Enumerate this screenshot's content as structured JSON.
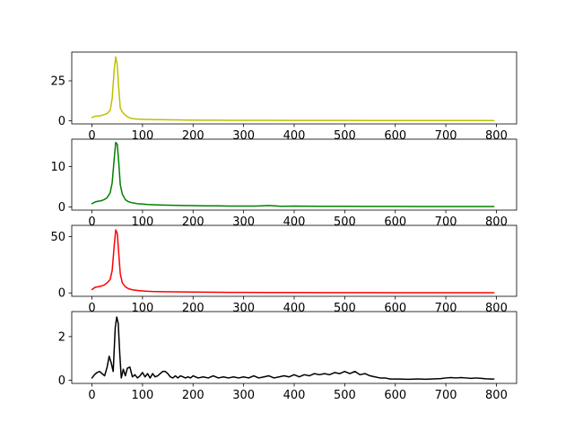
{
  "figure": {
    "background": "#ffffff"
  },
  "chart_data": [
    {
      "type": "line",
      "color": "#bfbf00",
      "xlim": [
        -40,
        840
      ],
      "ylim": [
        -2,
        43
      ],
      "xticks": [
        0,
        100,
        200,
        300,
        400,
        500,
        600,
        700,
        800
      ],
      "yticks": [
        0,
        25
      ],
      "x": [
        0,
        6,
        12,
        18,
        24,
        30,
        36,
        40,
        44,
        47,
        50,
        53,
        56,
        60,
        64,
        70,
        76,
        82,
        90,
        100,
        110,
        120,
        130,
        140,
        150,
        160,
        170,
        180,
        190,
        200,
        225,
        250,
        275,
        300,
        350,
        400,
        450,
        500,
        550,
        600,
        650,
        700,
        750,
        795
      ],
      "values": [
        2,
        2.8,
        3,
        3.2,
        3.8,
        4.5,
        6.5,
        14,
        32,
        40,
        35,
        20,
        8,
        5.5,
        4,
        2.5,
        1.6,
        1.2,
        1.0,
        0.9,
        0.8,
        0.75,
        0.7,
        0.65,
        0.6,
        0.55,
        0.5,
        0.45,
        0.4,
        0.4,
        0.35,
        0.3,
        0.28,
        0.25,
        0.22,
        0.2,
        0.18,
        0.15,
        0.14,
        0.12,
        0.1,
        0.1,
        0.08,
        0.08
      ]
    },
    {
      "type": "line",
      "color": "#008000",
      "xlim": [
        -40,
        840
      ],
      "ylim": [
        -0.8,
        16.8
      ],
      "xticks": [
        0,
        100,
        200,
        300,
        400,
        500,
        600,
        700,
        800
      ],
      "yticks": [
        0,
        10
      ],
      "x": [
        0,
        6,
        12,
        18,
        24,
        30,
        36,
        40,
        44,
        47,
        50,
        53,
        56,
        60,
        66,
        72,
        80,
        90,
        100,
        110,
        120,
        140,
        160,
        180,
        200,
        225,
        250,
        275,
        300,
        325,
        350,
        375,
        400,
        450,
        500,
        550,
        600,
        650,
        700,
        750,
        795
      ],
      "values": [
        0.8,
        1.2,
        1.4,
        1.5,
        1.8,
        2.3,
        3.5,
        6,
        12,
        16,
        15.5,
        11,
        5.5,
        3.2,
        1.8,
        1.3,
        1.0,
        0.8,
        0.7,
        0.6,
        0.55,
        0.45,
        0.4,
        0.35,
        0.3,
        0.25,
        0.25,
        0.2,
        0.2,
        0.2,
        0.35,
        0.15,
        0.2,
        0.15,
        0.15,
        0.12,
        0.12,
        0.1,
        0.1,
        0.08,
        0.08
      ]
    },
    {
      "type": "line",
      "color": "#ff0000",
      "xlim": [
        -40,
        840
      ],
      "ylim": [
        -3,
        60
      ],
      "xticks": [
        0,
        100,
        200,
        300,
        400,
        500,
        600,
        700,
        800
      ],
      "yticks": [
        0,
        50
      ],
      "x": [
        0,
        6,
        12,
        18,
        24,
        30,
        36,
        40,
        44,
        47,
        50,
        53,
        56,
        60,
        66,
        72,
        80,
        90,
        100,
        110,
        120,
        140,
        160,
        180,
        200,
        225,
        250,
        275,
        300,
        350,
        400,
        450,
        500,
        550,
        600,
        650,
        700,
        750,
        795
      ],
      "values": [
        3,
        5,
        5.5,
        6,
        7,
        9,
        12,
        20,
        42,
        56,
        53,
        35,
        17,
        9,
        5.5,
        3.8,
        2.8,
        2.2,
        1.8,
        1.5,
        1.3,
        1.1,
        0.95,
        0.85,
        0.75,
        0.65,
        0.55,
        0.5,
        0.45,
        0.4,
        0.35,
        0.3,
        0.28,
        0.25,
        0.22,
        0.2,
        0.18,
        0.16,
        0.15
      ]
    },
    {
      "type": "line",
      "color": "#000000",
      "xlim": [
        -40,
        840
      ],
      "ylim": [
        -0.15,
        3.15
      ],
      "xticks": [
        0,
        100,
        200,
        300,
        400,
        500,
        600,
        700,
        800
      ],
      "yticks": [
        0,
        2
      ],
      "x": [
        0,
        5,
        10,
        15,
        20,
        25,
        30,
        34,
        38,
        42,
        46,
        49,
        52,
        55,
        58,
        62,
        66,
        70,
        75,
        80,
        85,
        90,
        95,
        100,
        105,
        110,
        115,
        120,
        125,
        130,
        135,
        140,
        145,
        150,
        155,
        160,
        165,
        170,
        175,
        180,
        185,
        190,
        195,
        200,
        210,
        220,
        230,
        240,
        250,
        260,
        270,
        280,
        290,
        300,
        310,
        320,
        330,
        340,
        350,
        360,
        370,
        380,
        390,
        400,
        410,
        420,
        430,
        440,
        450,
        460,
        470,
        480,
        490,
        500,
        510,
        520,
        530,
        540,
        550,
        560,
        570,
        580,
        590,
        600,
        610,
        620,
        630,
        640,
        650,
        660,
        670,
        680,
        690,
        700,
        710,
        720,
        730,
        740,
        750,
        760,
        770,
        780,
        790,
        795
      ],
      "values": [
        0.1,
        0.25,
        0.35,
        0.4,
        0.3,
        0.2,
        0.6,
        1.1,
        0.8,
        0.4,
        2.4,
        2.9,
        2.6,
        1.2,
        0.1,
        0.5,
        0.2,
        0.55,
        0.6,
        0.15,
        0.25,
        0.1,
        0.2,
        0.35,
        0.15,
        0.3,
        0.1,
        0.3,
        0.15,
        0.2,
        0.3,
        0.4,
        0.4,
        0.3,
        0.15,
        0.1,
        0.2,
        0.1,
        0.2,
        0.15,
        0.1,
        0.15,
        0.1,
        0.2,
        0.1,
        0.15,
        0.1,
        0.2,
        0.1,
        0.15,
        0.1,
        0.15,
        0.1,
        0.15,
        0.1,
        0.2,
        0.1,
        0.15,
        0.2,
        0.1,
        0.15,
        0.2,
        0.15,
        0.25,
        0.15,
        0.25,
        0.2,
        0.3,
        0.25,
        0.3,
        0.25,
        0.35,
        0.3,
        0.4,
        0.3,
        0.4,
        0.25,
        0.3,
        0.2,
        0.15,
        0.1,
        0.1,
        0.05,
        0.05,
        0.05,
        0.04,
        0.04,
        0.05,
        0.05,
        0.04,
        0.05,
        0.06,
        0.07,
        0.1,
        0.12,
        0.1,
        0.12,
        0.1,
        0.08,
        0.1,
        0.08,
        0.06,
        0.05,
        0.05
      ]
    }
  ]
}
